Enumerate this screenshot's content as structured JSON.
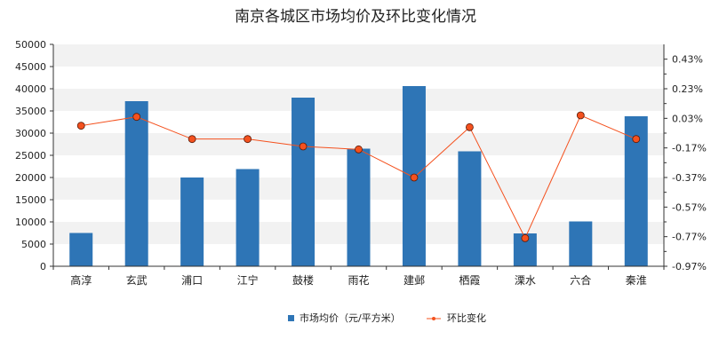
{
  "chart_data": {
    "type": "bar",
    "title": "南京各城区市场均价及环比变化情况",
    "categories": [
      "高淳",
      "玄武",
      "浦口",
      "江宁",
      "鼓楼",
      "雨花",
      "建邺",
      "栖霞",
      "溧水",
      "六合",
      "秦淮"
    ],
    "series": [
      {
        "name": "市场均价（元/平方米）",
        "axis": "left",
        "type": "bar",
        "color": "#2e75b6",
        "values": [
          7500,
          37200,
          20000,
          21900,
          38000,
          26500,
          40600,
          25900,
          7400,
          10100,
          33800
        ]
      },
      {
        "name": "环比变化",
        "axis": "right",
        "type": "line",
        "unit": "%",
        "color": "#f4511e",
        "values": [
          -0.02,
          0.04,
          -0.11,
          -0.11,
          -0.16,
          -0.18,
          -0.37,
          -0.03,
          -0.78,
          0.05,
          -0.11
        ]
      }
    ],
    "y_left": {
      "range": [
        0,
        50000
      ],
      "ticks": [
        "0",
        "5000",
        "10000",
        "15000",
        "20000",
        "25000",
        "30000",
        "35000",
        "40000",
        "45000",
        "50000"
      ]
    },
    "y_right": {
      "range": [
        -0.97,
        0.53
      ],
      "ticks": [
        "-0.97%",
        "-0.77%",
        "-0.57%",
        "-0.37%",
        "-0.17%",
        "0.03%",
        "0.23%",
        "0.43%"
      ],
      "tick_values": [
        -0.97,
        -0.77,
        -0.57,
        -0.37,
        -0.17,
        0.03,
        0.23,
        0.43
      ]
    },
    "grid": "horizontal bands",
    "legend_position": "bottom-center"
  }
}
